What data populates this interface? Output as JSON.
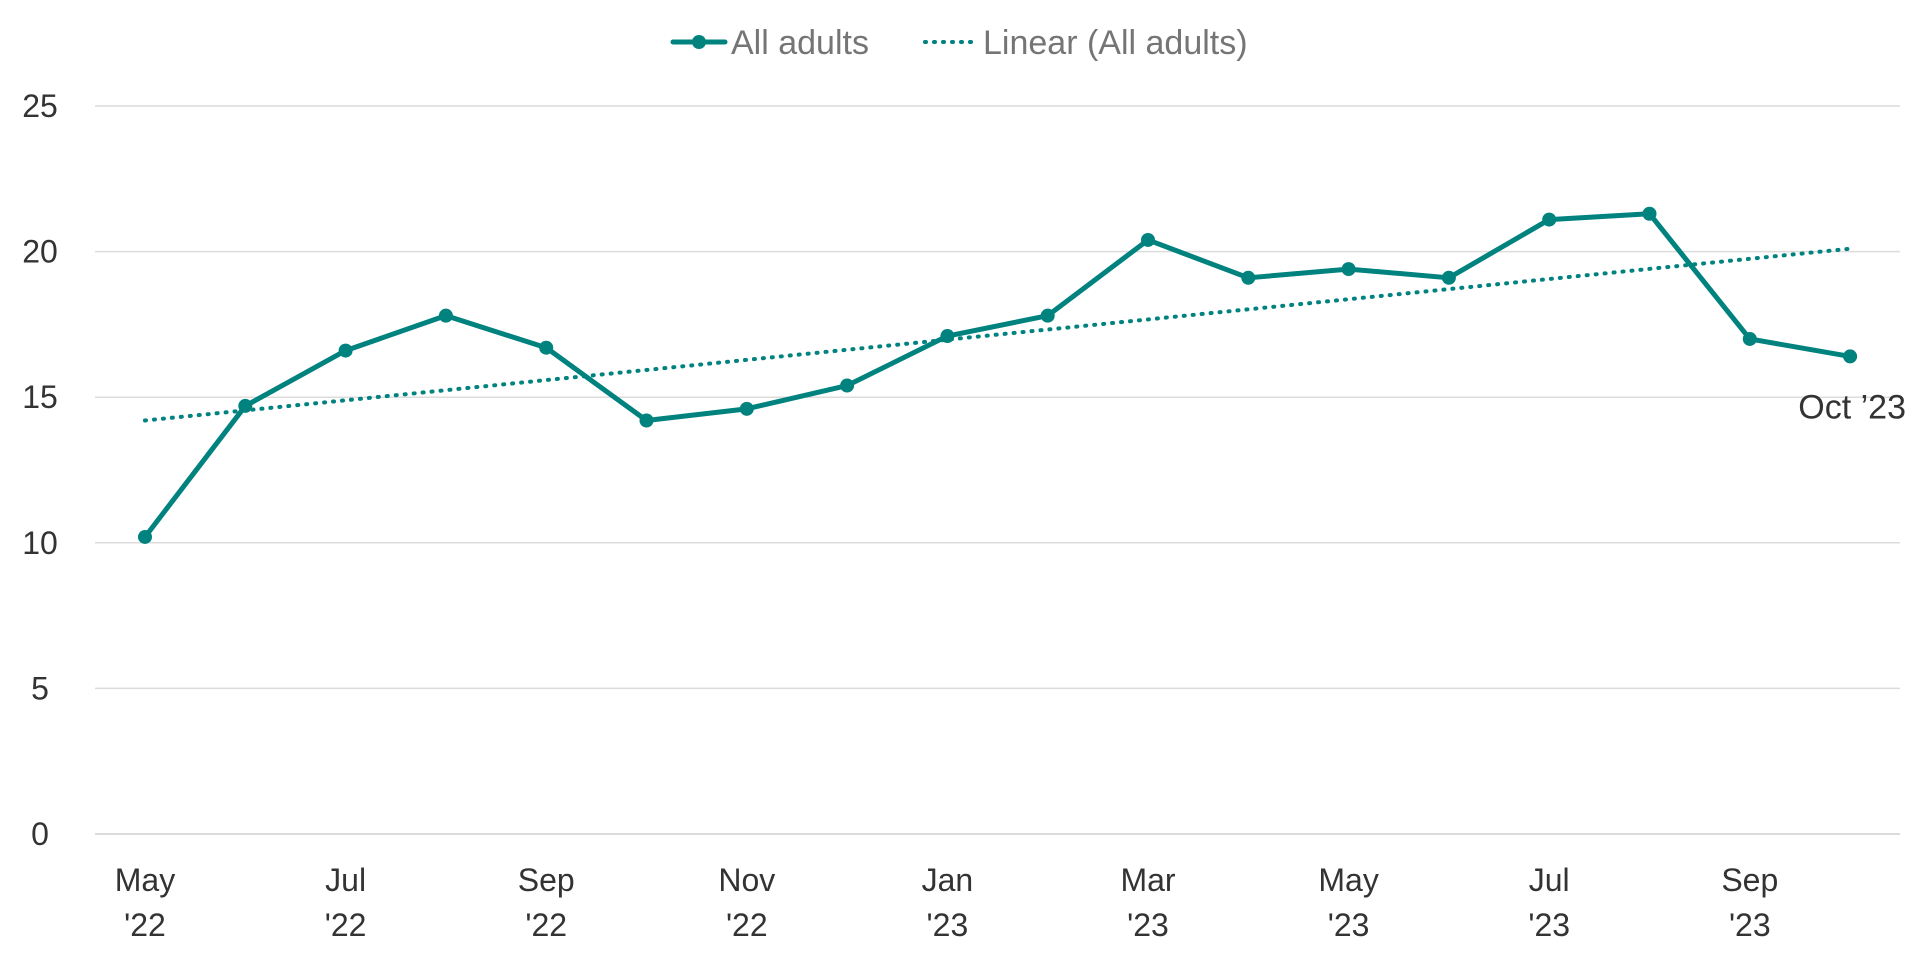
{
  "chart_data": {
    "type": "line",
    "title": "",
    "xlabel": "",
    "ylabel": "",
    "ylim": [
      0,
      25
    ],
    "yticks": [
      0,
      5,
      10,
      15,
      20,
      25
    ],
    "grid": true,
    "legend_position": "top-center",
    "categories": [
      "May '22",
      "Jun '22",
      "Jul '22",
      "Aug '22",
      "Sep '22",
      "Oct '22",
      "Nov '22",
      "Dec '22",
      "Jan '23",
      "Feb '23",
      "Mar '23",
      "Apr '23",
      "May '23",
      "Jun '23",
      "Jul '23",
      "Aug '23",
      "Sep '23",
      "Oct '23"
    ],
    "x_tick_labels": [
      {
        "index": 0,
        "line1": "May",
        "line2": "'22"
      },
      {
        "index": 2,
        "line1": "Jul",
        "line2": "'22"
      },
      {
        "index": 4,
        "line1": "Sep",
        "line2": "'22"
      },
      {
        "index": 6,
        "line1": "Nov",
        "line2": "'22"
      },
      {
        "index": 8,
        "line1": "Jan",
        "line2": "'23"
      },
      {
        "index": 10,
        "line1": "Mar",
        "line2": "'23"
      },
      {
        "index": 12,
        "line1": "May",
        "line2": "'23"
      },
      {
        "index": 14,
        "line1": "Jul",
        "line2": "'23"
      },
      {
        "index": 16,
        "line1": "Sep",
        "line2": "'23"
      }
    ],
    "series": [
      {
        "name": "All adults",
        "color": "#00827f",
        "style": "solid-with-markers",
        "values": [
          10.2,
          14.7,
          16.6,
          17.8,
          16.7,
          14.2,
          14.6,
          15.4,
          17.1,
          17.8,
          20.4,
          19.1,
          19.4,
          19.1,
          21.1,
          21.3,
          17.0,
          16.4
        ]
      },
      {
        "name": "Linear (All adults)",
        "color": "#00827f",
        "style": "dotted",
        "trend_start": 14.2,
        "trend_end": 20.1
      }
    ],
    "annotations": [
      {
        "index": 17,
        "text": "Oct ’23"
      }
    ]
  }
}
